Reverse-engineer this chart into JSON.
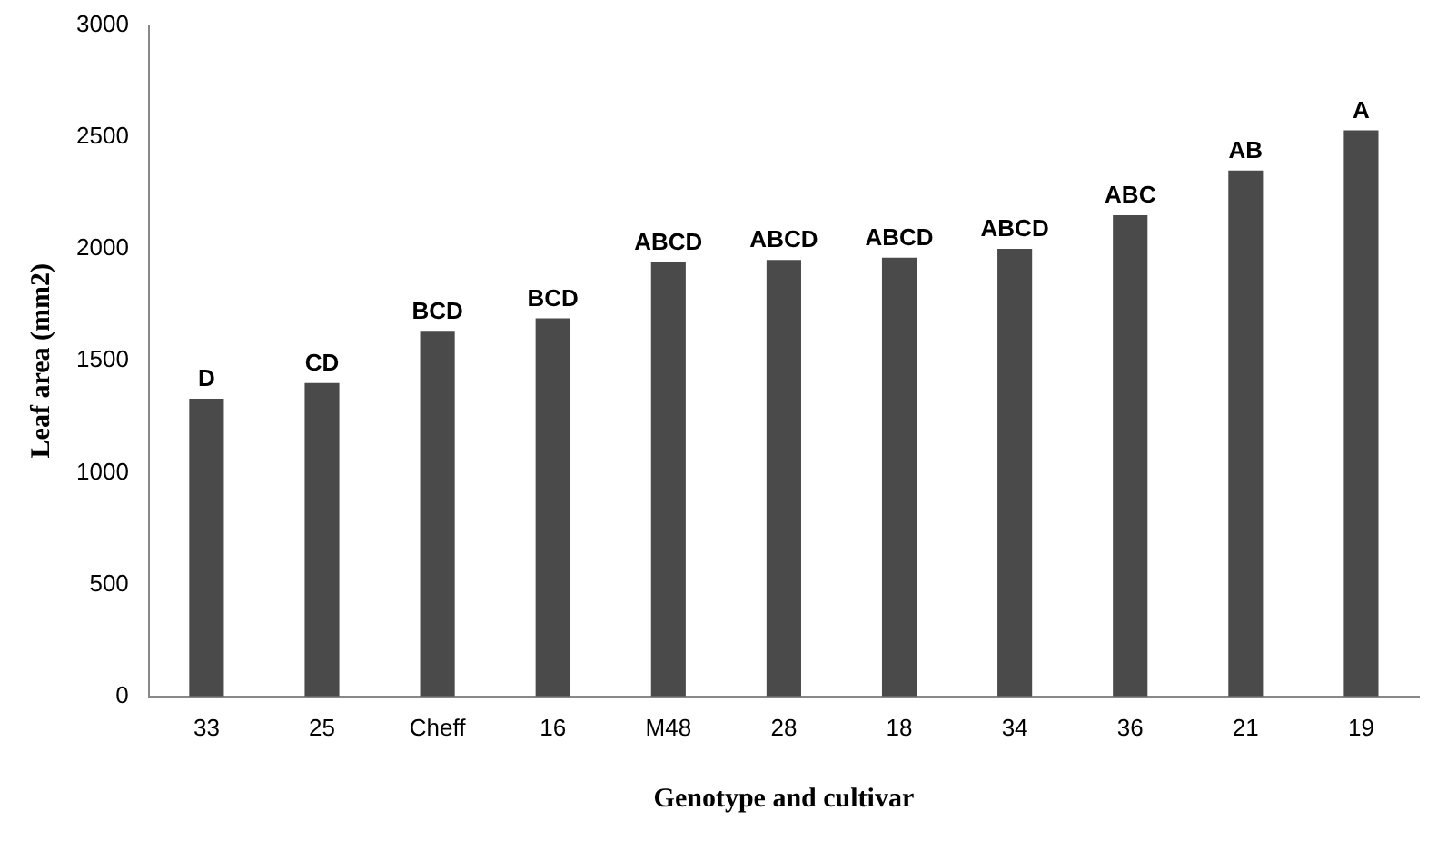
{
  "chart_data": {
    "type": "bar",
    "xlabel": "Genotype and cultivar",
    "ylabel": "Leaf area (mm2)",
    "categories": [
      "33",
      "25",
      "Cheff",
      "16",
      "M48",
      "28",
      "18",
      "34",
      "36",
      "21",
      "19"
    ],
    "values": [
      1330,
      1400,
      1630,
      1690,
      1940,
      1950,
      1960,
      2000,
      2150,
      2350,
      2530
    ],
    "color": "#4a4a4a",
    "ylim": [
      0,
      3000
    ],
    "yticks": [
      0,
      500,
      1000,
      1500,
      2000,
      2500,
      3000
    ],
    "grid": false,
    "legend": false,
    "annotations": [
      {
        "text": "D",
        "x": "33",
        "y": 1330
      },
      {
        "text": "CD",
        "x": "25",
        "y": 1400
      },
      {
        "text": "BCD",
        "x": "Cheff",
        "y": 1630
      },
      {
        "text": "BCD",
        "x": "16",
        "y": 1690
      },
      {
        "text": "ABCD",
        "x": "M48",
        "y": 1940
      },
      {
        "text": "ABCD",
        "x": "28",
        "y": 1950
      },
      {
        "text": "ABCD",
        "x": "18",
        "y": 1960
      },
      {
        "text": "ABCD",
        "x": "34",
        "y": 2000
      },
      {
        "text": "ABC",
        "x": "36",
        "y": 2150
      },
      {
        "text": "AB",
        "x": "21",
        "y": 2350
      },
      {
        "text": "A",
        "x": "19",
        "y": 2530
      }
    ]
  }
}
